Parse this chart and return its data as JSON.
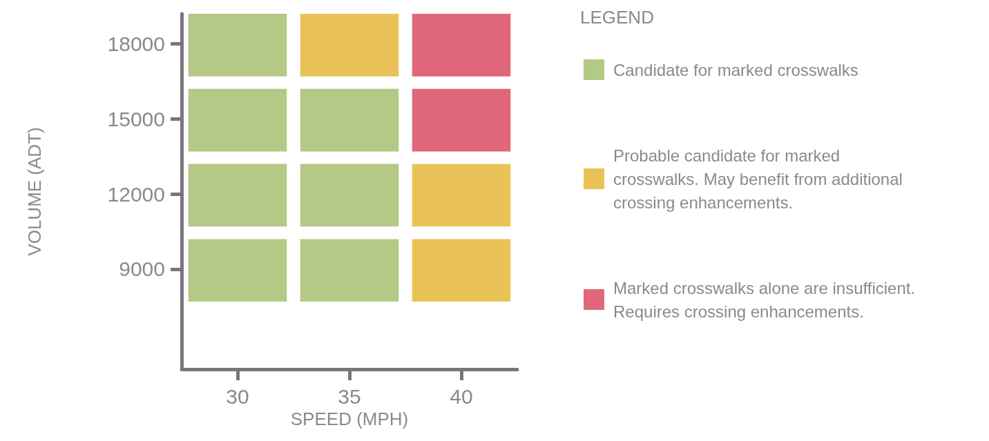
{
  "chart_data": {
    "type": "bar",
    "xlabel": "SPEED (MPH)",
    "ylabel": "VOLUME (ADT)",
    "legend_title": "LEGEND",
    "legend": "right",
    "categories": [
      "30",
      "35",
      "40"
    ],
    "ylim": [
      5000,
      19200
    ],
    "yticks": [
      9000,
      12000,
      15000,
      18000
    ],
    "series": [
      {
        "name": "Candidate for marked crosswalks",
        "color": "#b3c985",
        "x": [
          "30",
          "30",
          "30",
          "30",
          "35",
          "35",
          "35"
        ],
        "base": [
          16700,
          13700,
          10700,
          7700,
          13700,
          10700,
          7700
        ],
        "values": [
          2500,
          2500,
          2500,
          2500,
          2500,
          2500,
          2500
        ]
      },
      {
        "name": "Probable candidate for marked crosswalks. May benefit from additional crossing enhancements.",
        "color": "#e9c357",
        "x": [
          "35",
          "40",
          "40"
        ],
        "base": [
          16700,
          10700,
          7700
        ],
        "values": [
          2500,
          2500,
          2500
        ]
      },
      {
        "name": "Marked crosswalks alone are insufficient. Requires crossing enhancements.",
        "color": "#e0677a",
        "x": [
          "40",
          "40"
        ],
        "base": [
          16700,
          13700
        ],
        "values": [
          2500,
          2500
        ]
      }
    ]
  }
}
